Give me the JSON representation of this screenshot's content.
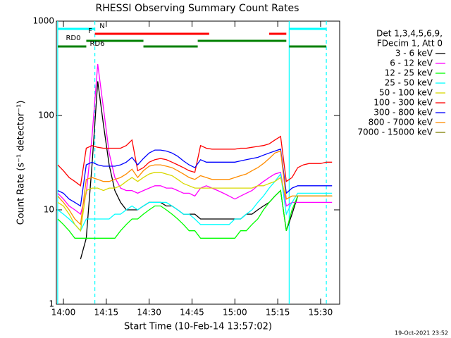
{
  "chart_data": {
    "type": "line",
    "title": "RHESSI Observing Summary Count Rates",
    "x_label": "Start Time (10-Feb-14 13:57:02)",
    "y_label": "Count Rate (s⁻¹ detector⁻¹)",
    "footer": "19-Oct-2021 23:52",
    "legend_header": [
      "Det 1,3,4,5,6,9,",
      "FDecim 1, Att 0"
    ],
    "log_y": true,
    "xlim": [
      "13:57:32",
      "15:36:40"
    ],
    "xticks": [
      "14:00",
      "14:15",
      "14:30",
      "14:45",
      "15:00",
      "15:15",
      "15:30"
    ],
    "ylim": [
      1,
      1000
    ],
    "yticks": [
      1,
      10,
      100,
      1000
    ],
    "x": [
      "13:58",
      "14:00",
      "14:02",
      "14:04",
      "14:06",
      "14:08",
      "14:10",
      "14:12",
      "14:14",
      "14:16",
      "14:18",
      "14:20",
      "14:22",
      "14:24",
      "14:26",
      "14:28",
      "14:30",
      "14:32",
      "14:34",
      "14:36",
      "14:38",
      "14:40",
      "14:42",
      "14:44",
      "14:46",
      "14:48",
      "14:50",
      "14:52",
      "14:54",
      "14:56",
      "14:58",
      "15:00",
      "15:02",
      "15:04",
      "15:06",
      "15:08",
      "15:10",
      "15:12",
      "15:14",
      "15:16",
      "15:18",
      "15:20",
      "15:22",
      "15:24",
      "15:26",
      "15:28",
      "15:30",
      "15:32",
      "15:34"
    ],
    "series": [
      {
        "name": "3 - 6 keV",
        "color": "#000000",
        "values": [
          null,
          null,
          null,
          null,
          3,
          5,
          30,
          230,
          80,
          30,
          16,
          12,
          10,
          10,
          10,
          11,
          12,
          12,
          12,
          11,
          11,
          10,
          9,
          9,
          9,
          8,
          8,
          8,
          8,
          8,
          8,
          8,
          8,
          9,
          9,
          10,
          11,
          12,
          14,
          16,
          6,
          9,
          14,
          14,
          14,
          14,
          14,
          14,
          14
        ]
      },
      {
        "name": "6 - 12 keV",
        "color": "#ff00ff",
        "values": [
          15,
          13,
          11,
          10,
          9,
          15,
          60,
          350,
          120,
          40,
          22,
          17,
          16,
          16,
          15,
          16,
          17,
          18,
          18,
          17,
          17,
          16,
          15,
          15,
          14,
          17,
          18,
          17,
          16,
          15,
          14,
          13,
          14,
          15,
          16,
          18,
          20,
          22,
          24,
          25,
          11,
          12,
          12,
          12,
          12,
          12,
          12,
          12,
          12
        ]
      },
      {
        "name": "12 - 25 keV",
        "color": "#00ff00",
        "values": [
          8,
          7,
          6,
          5,
          5,
          5,
          5,
          5,
          5,
          5,
          5,
          6,
          7,
          8,
          8,
          9,
          10,
          11,
          11,
          10,
          9,
          8,
          7,
          6,
          6,
          5,
          5,
          5,
          5,
          5,
          5,
          5,
          6,
          6,
          7,
          8,
          10,
          12,
          14,
          16,
          6,
          10,
          14,
          14,
          14,
          14,
          14,
          14,
          14
        ]
      },
      {
        "name": "25 - 50 keV",
        "color": "#00ffff",
        "values": [
          10,
          9,
          8,
          7,
          6,
          8,
          8,
          8,
          8,
          8,
          9,
          9,
          10,
          11,
          10,
          11,
          12,
          12,
          12,
          12,
          11,
          10,
          9,
          9,
          8,
          7,
          7,
          7,
          7,
          7,
          7,
          8,
          8,
          9,
          10,
          12,
          14,
          17,
          20,
          24,
          9,
          12,
          15,
          15,
          15,
          15,
          15,
          15,
          15
        ]
      },
      {
        "name": "50 - 100 keV",
        "color": "#d8d800",
        "values": [
          12,
          11,
          9,
          7,
          6,
          16,
          17,
          17,
          16,
          17,
          17,
          18,
          20,
          22,
          20,
          22,
          24,
          25,
          25,
          24,
          23,
          21,
          19,
          18,
          17,
          17,
          17,
          17,
          17,
          17,
          17,
          17,
          17,
          17,
          17,
          18,
          18,
          19,
          20,
          22,
          13,
          14,
          14,
          14,
          14,
          14,
          14,
          14,
          14
        ]
      },
      {
        "name": "100 - 300 keV",
        "color": "#ff0000",
        "values": [
          30,
          26,
          22,
          20,
          18,
          45,
          48,
          46,
          45,
          45,
          45,
          45,
          48,
          55,
          26,
          28,
          32,
          34,
          35,
          34,
          32,
          30,
          28,
          26,
          25,
          48,
          45,
          44,
          44,
          44,
          44,
          44,
          45,
          45,
          46,
          47,
          48,
          50,
          55,
          60,
          20,
          22,
          28,
          30,
          31,
          31,
          31,
          32,
          32
        ]
      },
      {
        "name": "300 - 800 keV",
        "color": "#0000ff",
        "values": [
          16,
          15,
          13,
          12,
          11,
          30,
          32,
          30,
          29,
          29,
          29,
          30,
          32,
          36,
          30,
          35,
          40,
          43,
          43,
          42,
          40,
          37,
          33,
          30,
          28,
          34,
          32,
          32,
          32,
          32,
          32,
          32,
          33,
          34,
          35,
          36,
          38,
          40,
          42,
          44,
          15,
          17,
          18,
          18,
          18,
          18,
          18,
          18,
          18
        ]
      },
      {
        "name": "800 - 7000 keV",
        "color": "#ff8c00",
        "values": [
          14,
          12,
          10,
          8,
          7,
          21,
          22,
          21,
          20,
          20,
          21,
          22,
          24,
          27,
          22,
          26,
          29,
          30,
          30,
          29,
          28,
          26,
          24,
          22,
          21,
          23,
          22,
          21,
          21,
          21,
          21,
          22,
          23,
          24,
          26,
          28,
          31,
          35,
          40,
          42,
          13,
          14,
          14,
          14,
          14,
          14,
          14,
          14,
          14
        ]
      },
      {
        "name": "7000 - 15000 keV",
        "color": "#808000",
        "values": [
          null,
          null,
          null,
          null,
          null,
          null,
          null,
          null,
          null,
          null,
          null,
          null,
          null,
          null,
          null,
          null,
          null,
          null,
          null,
          null,
          null,
          null,
          null,
          null,
          null,
          null,
          null,
          null,
          null,
          null,
          null,
          null,
          null,
          null,
          null,
          null,
          null,
          null,
          null,
          null,
          null,
          null,
          null,
          null,
          null,
          null,
          null,
          null,
          null
        ]
      }
    ],
    "flags": [
      {
        "label": "N",
        "color": "#00ffff",
        "intervals": [
          [
            "13:58",
            "14:11"
          ],
          [
            "15:19",
            "15:32"
          ]
        ]
      },
      {
        "label": "F",
        "color": "#ff0000",
        "intervals": [
          [
            "14:11",
            "14:51"
          ],
          [
            "15:12",
            "15:18"
          ]
        ]
      },
      {
        "label": "RD0",
        "color": "#008000",
        "intervals": [
          [
            "14:08",
            "14:28"
          ],
          [
            "14:47",
            "15:18"
          ]
        ]
      },
      {
        "label": "RD6",
        "color": "#008000",
        "intervals": [
          [
            "13:58",
            "14:08"
          ],
          [
            "14:28",
            "14:47"
          ],
          [
            "15:19",
            "15:32"
          ]
        ]
      }
    ],
    "vlines": [
      {
        "x": "13:58",
        "color": "#00ffff",
        "dashed": false
      },
      {
        "x": "14:11",
        "color": "#00ffff",
        "dashed": true
      },
      {
        "x": "15:19",
        "color": "#00ffff",
        "dashed": false
      },
      {
        "x": "15:32",
        "color": "#00ffff",
        "dashed": true
      }
    ]
  }
}
